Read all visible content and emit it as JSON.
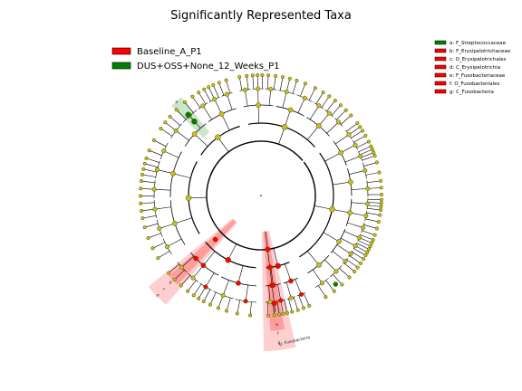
{
  "title": "Significantly Represented Taxa",
  "colors": {
    "node": "#c6c01c",
    "node_stroke": "#4a4a00",
    "edge": "#000000",
    "class_a": "#ff0000",
    "class_b": "#008000",
    "shade_a": "#ff4040",
    "shade_b": "#80c080"
  },
  "class_legend": [
    {
      "label": "Baseline_A_P1",
      "color": "#ff0000"
    },
    {
      "label": "DUS+OSS+None_12_Weeks_P1",
      "color": "#008000"
    }
  ],
  "biomarker_legend": [
    {
      "label": "a: F_Streptococcaceae",
      "color": "#008000"
    },
    {
      "label": "b: F_Erysipelotrichaceae",
      "color": "#ff0000"
    },
    {
      "label": "c: O_Erysipelotrichales",
      "color": "#ff0000"
    },
    {
      "label": "d: C_Erysipelotrichia",
      "color": "#ff0000"
    },
    {
      "label": "e: F_Fusobacteriaceae",
      "color": "#ff0000"
    },
    {
      "label": "f: O_Fusobacteriales",
      "color": "#ff0000"
    },
    {
      "label": "g: C_Fusobacteria",
      "color": "#ff0000"
    }
  ],
  "clade_labels": {
    "a": "a",
    "b": "b",
    "c": "c",
    "d": "d",
    "e": "e",
    "f": "f",
    "g": "g",
    "p": "p: Fusobacteria"
  }
}
